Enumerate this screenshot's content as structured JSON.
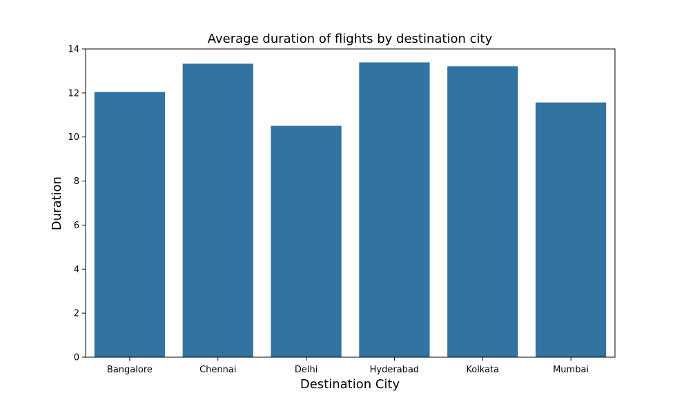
{
  "chart_data": {
    "type": "bar",
    "title": "Average duration of flights by destination city",
    "xlabel": "Destination City",
    "ylabel": "Duration",
    "categories": [
      "Bangalore",
      "Chennai",
      "Delhi",
      "Hyderabad",
      "Kolkata",
      "Mumbai"
    ],
    "values": [
      12.05,
      13.33,
      10.51,
      13.39,
      13.21,
      11.57
    ],
    "ylim": [
      0,
      14
    ],
    "yticks": [
      "0",
      "2",
      "4",
      "6",
      "8",
      "10",
      "12",
      "14"
    ],
    "bar_color": "#3274a1",
    "grid": false,
    "legend": "none"
  }
}
